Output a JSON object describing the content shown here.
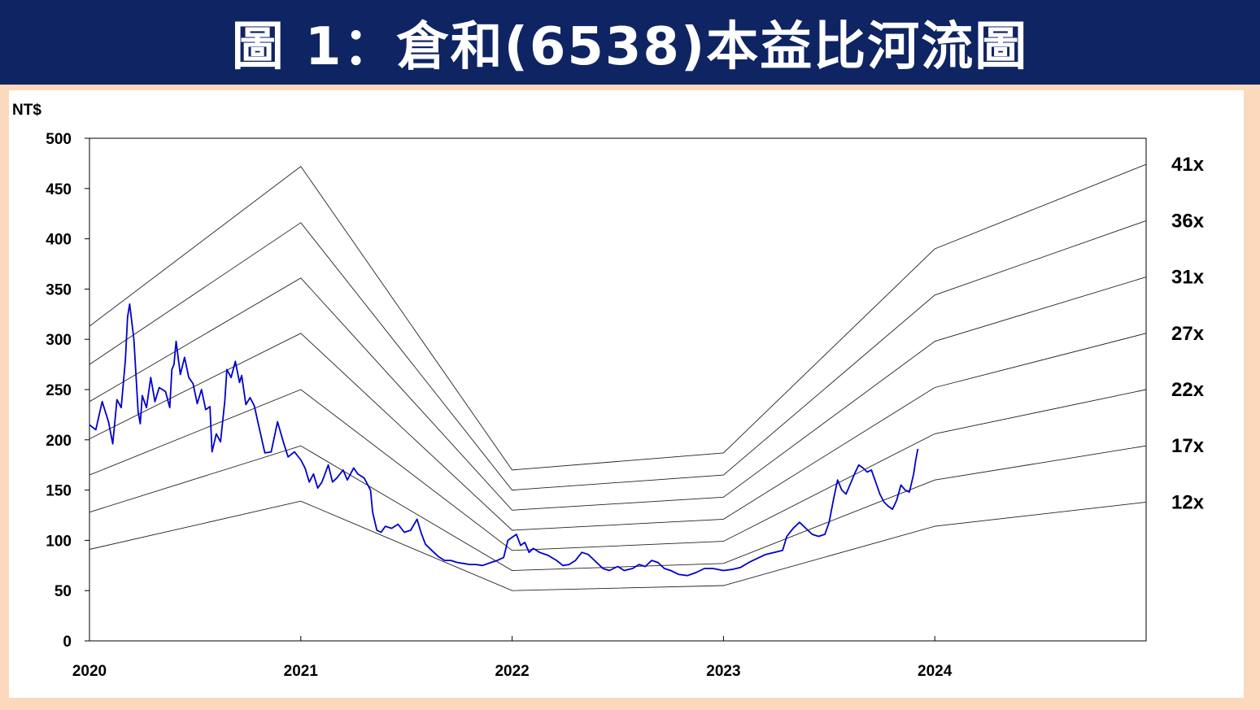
{
  "title": "圖 1：倉和(6538)本益比河流圖",
  "chart_data": {
    "type": "line",
    "ylabel": "NT$",
    "ylim": [
      0,
      500
    ],
    "xlim": [
      2020.0,
      2025.0
    ],
    "y_ticks": [
      0,
      50,
      100,
      150,
      200,
      250,
      300,
      350,
      400,
      450,
      500
    ],
    "x_ticks": [
      "2020",
      "2021",
      "2022",
      "2023",
      "2024"
    ],
    "grid": false,
    "pe_bands": [
      {
        "name": "41x",
        "points": [
          [
            2020.0,
            313
          ],
          [
            2021.0,
            472
          ],
          [
            2022.0,
            170
          ],
          [
            2023.0,
            187
          ],
          [
            2024.0,
            390
          ],
          [
            2025.0,
            474
          ]
        ]
      },
      {
        "name": "36x",
        "points": [
          [
            2020.0,
            275
          ],
          [
            2021.0,
            416
          ],
          [
            2022.0,
            150
          ],
          [
            2023.0,
            165
          ],
          [
            2024.0,
            344
          ],
          [
            2025.0,
            418
          ]
        ]
      },
      {
        "name": "31x",
        "points": [
          [
            2020.0,
            238
          ],
          [
            2021.0,
            361
          ],
          [
            2022.0,
            130
          ],
          [
            2023.0,
            143
          ],
          [
            2024.0,
            298
          ],
          [
            2025.0,
            362
          ]
        ]
      },
      {
        "name": "27x",
        "points": [
          [
            2020.0,
            201
          ],
          [
            2021.0,
            306
          ],
          [
            2022.0,
            110
          ],
          [
            2023.0,
            121
          ],
          [
            2024.0,
            252
          ],
          [
            2025.0,
            306
          ]
        ]
      },
      {
        "name": "22x",
        "points": [
          [
            2020.0,
            165
          ],
          [
            2021.0,
            250
          ],
          [
            2022.0,
            90
          ],
          [
            2023.0,
            99
          ],
          [
            2024.0,
            206
          ],
          [
            2025.0,
            250
          ]
        ]
      },
      {
        "name": "17x",
        "points": [
          [
            2020.0,
            128
          ],
          [
            2021.0,
            194
          ],
          [
            2022.0,
            70
          ],
          [
            2023.0,
            77
          ],
          [
            2024.0,
            160
          ],
          [
            2025.0,
            194
          ]
        ]
      },
      {
        "name": "12x",
        "points": [
          [
            2020.0,
            91
          ],
          [
            2021.0,
            139
          ],
          [
            2022.0,
            50
          ],
          [
            2023.0,
            55
          ],
          [
            2024.0,
            114
          ],
          [
            2025.0,
            138
          ]
        ]
      }
    ],
    "price": {
      "color": "#0000cc",
      "points": [
        [
          2020.0,
          215
        ],
        [
          2020.03,
          210
        ],
        [
          2020.06,
          238
        ],
        [
          2020.09,
          218
        ],
        [
          2020.11,
          196
        ],
        [
          2020.13,
          240
        ],
        [
          2020.15,
          232
        ],
        [
          2020.17,
          280
        ],
        [
          2020.18,
          322
        ],
        [
          2020.19,
          335
        ],
        [
          2020.21,
          300
        ],
        [
          2020.23,
          228
        ],
        [
          2020.24,
          216
        ],
        [
          2020.25,
          244
        ],
        [
          2020.27,
          232
        ],
        [
          2020.29,
          262
        ],
        [
          2020.31,
          238
        ],
        [
          2020.33,
          252
        ],
        [
          2020.36,
          248
        ],
        [
          2020.38,
          232
        ],
        [
          2020.39,
          270
        ],
        [
          2020.4,
          275
        ],
        [
          2020.41,
          298
        ],
        [
          2020.43,
          265
        ],
        [
          2020.45,
          282
        ],
        [
          2020.47,
          262
        ],
        [
          2020.49,
          256
        ],
        [
          2020.51,
          236
        ],
        [
          2020.53,
          250
        ],
        [
          2020.55,
          230
        ],
        [
          2020.57,
          233
        ],
        [
          2020.58,
          188
        ],
        [
          2020.6,
          206
        ],
        [
          2020.62,
          198
        ],
        [
          2020.64,
          238
        ],
        [
          2020.65,
          270
        ],
        [
          2020.67,
          262
        ],
        [
          2020.69,
          278
        ],
        [
          2020.71,
          257
        ],
        [
          2020.72,
          264
        ],
        [
          2020.74,
          235
        ],
        [
          2020.76,
          242
        ],
        [
          2020.78,
          234
        ],
        [
          2020.8,
          215
        ],
        [
          2020.83,
          187
        ],
        [
          2020.86,
          188
        ],
        [
          2020.89,
          218
        ],
        [
          2020.92,
          196
        ],
        [
          2020.94,
          183
        ],
        [
          2020.97,
          188
        ],
        [
          2021.0,
          180
        ],
        [
          2021.02,
          172
        ],
        [
          2021.04,
          158
        ],
        [
          2021.06,
          166
        ],
        [
          2021.08,
          152
        ],
        [
          2021.1,
          158
        ],
        [
          2021.13,
          175
        ],
        [
          2021.15,
          158
        ],
        [
          2021.17,
          162
        ],
        [
          2021.2,
          170
        ],
        [
          2021.22,
          160
        ],
        [
          2021.25,
          172
        ],
        [
          2021.27,
          166
        ],
        [
          2021.3,
          162
        ],
        [
          2021.33,
          150
        ],
        [
          2021.34,
          128
        ],
        [
          2021.36,
          110
        ],
        [
          2021.38,
          108
        ],
        [
          2021.4,
          114
        ],
        [
          2021.43,
          112
        ],
        [
          2021.46,
          116
        ],
        [
          2021.49,
          108
        ],
        [
          2021.52,
          110
        ],
        [
          2021.55,
          121
        ],
        [
          2021.57,
          107
        ],
        [
          2021.59,
          96
        ],
        [
          2021.62,
          90
        ],
        [
          2021.65,
          84
        ],
        [
          2021.68,
          80
        ],
        [
          2021.71,
          80
        ],
        [
          2021.74,
          78
        ],
        [
          2021.77,
          77
        ],
        [
          2021.8,
          76
        ],
        [
          2021.83,
          76
        ],
        [
          2021.86,
          75
        ],
        [
          2021.9,
          78
        ],
        [
          2021.93,
          80
        ],
        [
          2021.96,
          83
        ],
        [
          2021.98,
          100
        ],
        [
          2022.02,
          106
        ],
        [
          2022.04,
          95
        ],
        [
          2022.06,
          98
        ],
        [
          2022.08,
          88
        ],
        [
          2022.1,
          92
        ],
        [
          2022.13,
          88
        ],
        [
          2022.17,
          85
        ],
        [
          2022.21,
          80
        ],
        [
          2022.24,
          75
        ],
        [
          2022.27,
          76
        ],
        [
          2022.3,
          80
        ],
        [
          2022.33,
          88
        ],
        [
          2022.36,
          86
        ],
        [
          2022.4,
          78
        ],
        [
          2022.43,
          72
        ],
        [
          2022.46,
          70
        ],
        [
          2022.5,
          74
        ],
        [
          2022.53,
          70
        ],
        [
          2022.57,
          72
        ],
        [
          2022.6,
          76
        ],
        [
          2022.63,
          74
        ],
        [
          2022.66,
          80
        ],
        [
          2022.69,
          78
        ],
        [
          2022.72,
          72
        ],
        [
          2022.75,
          70
        ],
        [
          2022.79,
          66
        ],
        [
          2022.83,
          65
        ],
        [
          2022.87,
          68
        ],
        [
          2022.91,
          72
        ],
        [
          2022.95,
          72
        ],
        [
          2023.0,
          70
        ],
        [
          2023.04,
          71
        ],
        [
          2023.08,
          73
        ],
        [
          2023.12,
          78
        ],
        [
          2023.16,
          82
        ],
        [
          2023.2,
          86
        ],
        [
          2023.24,
          88
        ],
        [
          2023.28,
          90
        ],
        [
          2023.3,
          104
        ],
        [
          2023.33,
          112
        ],
        [
          2023.36,
          118
        ],
        [
          2023.39,
          112
        ],
        [
          2023.42,
          106
        ],
        [
          2023.45,
          104
        ],
        [
          2023.48,
          106
        ],
        [
          2023.5,
          118
        ],
        [
          2023.52,
          140
        ],
        [
          2023.54,
          160
        ],
        [
          2023.56,
          150
        ],
        [
          2023.58,
          146
        ],
        [
          2023.6,
          156
        ],
        [
          2023.62,
          166
        ],
        [
          2023.64,
          175
        ],
        [
          2023.66,
          172
        ],
        [
          2023.68,
          168
        ],
        [
          2023.7,
          170
        ],
        [
          2023.72,
          158
        ],
        [
          2023.74,
          146
        ],
        [
          2023.76,
          138
        ],
        [
          2023.78,
          134
        ],
        [
          2023.8,
          131
        ],
        [
          2023.82,
          140
        ],
        [
          2023.84,
          155
        ],
        [
          2023.86,
          150
        ],
        [
          2023.88,
          148
        ],
        [
          2023.9,
          166
        ],
        [
          2023.91,
          180
        ],
        [
          2023.92,
          191
        ]
      ]
    }
  }
}
